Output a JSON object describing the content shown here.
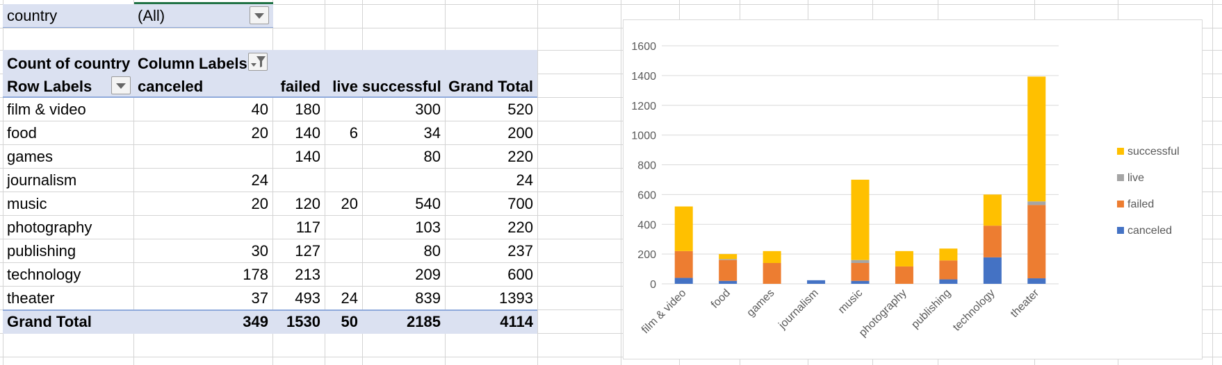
{
  "filter": {
    "field": "country",
    "value": "(All)"
  },
  "pivot": {
    "corner_label": "Count of country",
    "column_labels_caption": "Column Labels",
    "row_labels_caption": "Row Labels",
    "columns": [
      "canceled",
      "failed",
      "live",
      "successful",
      "Grand Total"
    ],
    "rows": [
      {
        "label": "film & video",
        "values": [
          "40",
          "180",
          "",
          "300",
          "520"
        ]
      },
      {
        "label": "food",
        "values": [
          "20",
          "140",
          "6",
          "34",
          "200"
        ]
      },
      {
        "label": "games",
        "values": [
          "",
          "140",
          "",
          "80",
          "220"
        ]
      },
      {
        "label": "journalism",
        "values": [
          "24",
          "",
          "",
          "",
          "24"
        ]
      },
      {
        "label": "music",
        "values": [
          "20",
          "120",
          "20",
          "540",
          "700"
        ]
      },
      {
        "label": "photography",
        "values": [
          "",
          "117",
          "",
          "103",
          "220"
        ]
      },
      {
        "label": "publishing",
        "values": [
          "30",
          "127",
          "",
          "80",
          "237"
        ]
      },
      {
        "label": "technology",
        "values": [
          "178",
          "213",
          "",
          "209",
          "600"
        ]
      },
      {
        "label": "theater",
        "values": [
          "37",
          "493",
          "24",
          "839",
          "1393"
        ]
      }
    ],
    "grand_total": {
      "label": "Grand Total",
      "values": [
        "349",
        "1530",
        "50",
        "2185",
        "4114"
      ]
    }
  },
  "colors": {
    "canceled": "#4472c4",
    "failed": "#ed7d31",
    "live": "#a5a5a5",
    "successful": "#ffc000",
    "pivot_band": "#dbe1f1",
    "gridline": "#d9d9d9"
  },
  "icons": {
    "filter_dropdown": "chevron-down-icon",
    "column_filter": "funnel-icon",
    "row_dropdown": "chevron-down-icon"
  },
  "chart_data": {
    "type": "bar",
    "stacked": true,
    "categories": [
      "film & video",
      "food",
      "games",
      "journalism",
      "music",
      "photography",
      "publishing",
      "technology",
      "theater"
    ],
    "series": [
      {
        "name": "canceled",
        "values": [
          40,
          20,
          0,
          24,
          20,
          0,
          30,
          178,
          37
        ]
      },
      {
        "name": "failed",
        "values": [
          180,
          140,
          140,
          0,
          120,
          117,
          127,
          213,
          493
        ]
      },
      {
        "name": "live",
        "values": [
          0,
          6,
          0,
          0,
          20,
          0,
          0,
          0,
          24
        ]
      },
      {
        "name": "successful",
        "values": [
          300,
          34,
          80,
          0,
          540,
          103,
          80,
          209,
          839
        ]
      }
    ],
    "ylim": [
      0,
      1600
    ],
    "yticks": [
      0,
      200,
      400,
      600,
      800,
      1000,
      1200,
      1400,
      1600
    ],
    "legend_order": [
      "successful",
      "live",
      "failed",
      "canceled"
    ],
    "legend_position": "right",
    "grid": true
  }
}
